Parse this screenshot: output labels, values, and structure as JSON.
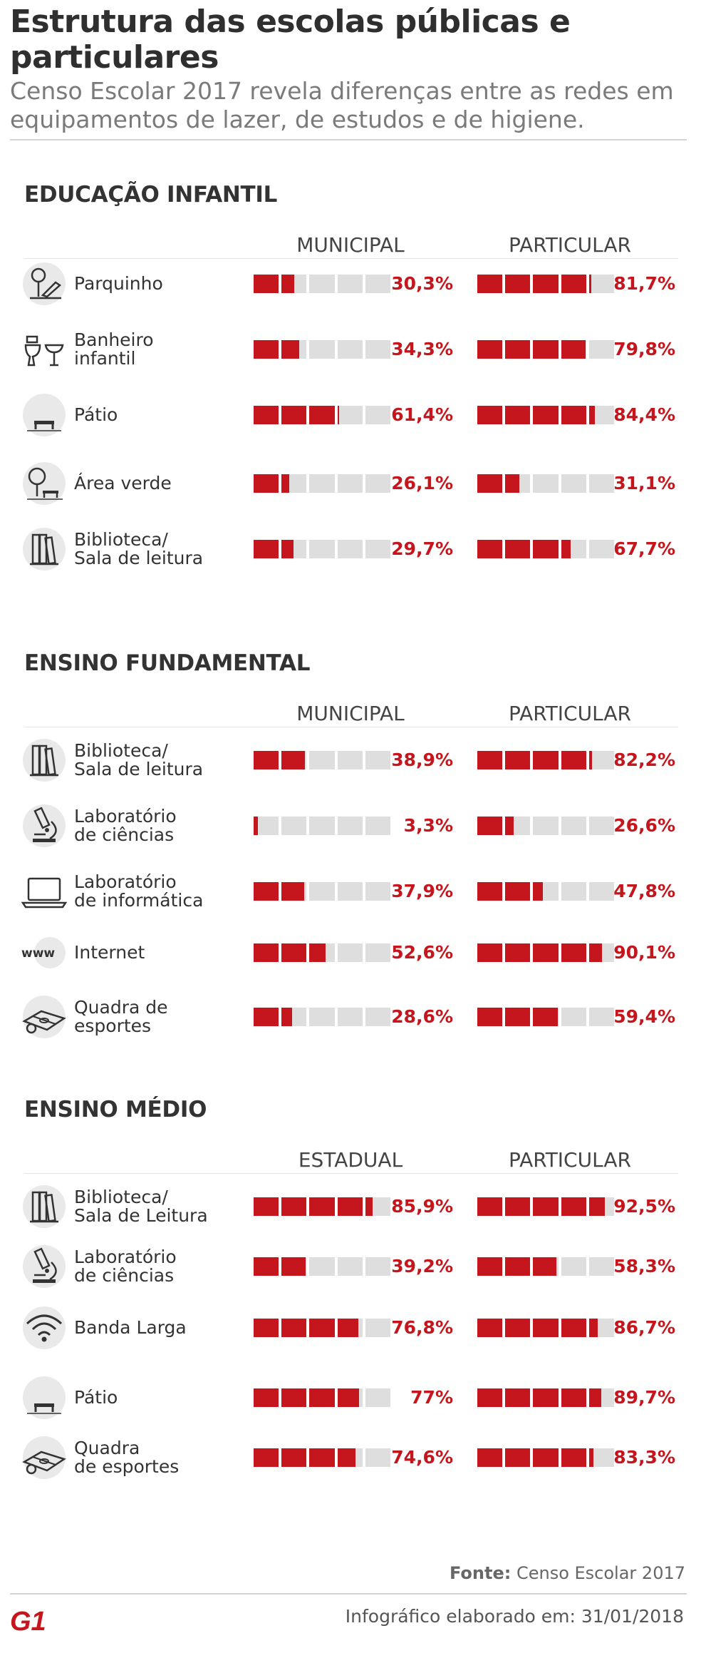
{
  "header": {
    "title": "Estrutura das escolas públicas e particulares",
    "subtitle": "Censo Escolar 2017 revela diferenças entre as redes em equipamentos de lazer, de estudos e de higiene."
  },
  "colors": {
    "accent": "#c4161c",
    "empty": "#dedede"
  },
  "chart_data": [
    {
      "type": "bar",
      "title": "EDUCAÇÃO INFANTIL",
      "columns": [
        "MUNICIPAL",
        "PARTICULAR"
      ],
      "categories": [
        "Parquinho",
        "Banheiro\ninfantil",
        "Pátio",
        "Área verde",
        "Biblioteca/\nSala de leitura"
      ],
      "icons": [
        "playground-icon",
        "toilet-icon",
        "bench-icon",
        "tree-icon",
        "books-icon"
      ],
      "series": [
        {
          "name": "MUNICIPAL",
          "values": [
            30.3,
            34.3,
            61.4,
            26.1,
            29.7
          ],
          "labels": [
            "30,3%",
            "34,3%",
            "61,4%",
            "26,1%",
            "29,7%"
          ]
        },
        {
          "name": "PARTICULAR",
          "values": [
            81.7,
            79.8,
            84.4,
            31.1,
            67.7
          ],
          "labels": [
            "81,7%",
            "79,8%",
            "84,4%",
            "31,1%",
            "67,7%"
          ]
        }
      ]
    },
    {
      "type": "bar",
      "title": "ENSINO FUNDAMENTAL",
      "columns": [
        "MUNICIPAL",
        "PARTICULAR"
      ],
      "categories": [
        "Biblioteca/\nSala de leitura",
        "Laboratório\nde ciências",
        "Laboratório\nde informática",
        "Internet",
        "Quadra de\nesportes"
      ],
      "icons": [
        "books-icon",
        "microscope-icon",
        "laptop-icon",
        "www-icon",
        "court-icon"
      ],
      "series": [
        {
          "name": "MUNICIPAL",
          "values": [
            38.9,
            3.3,
            37.9,
            52.6,
            28.6
          ],
          "labels": [
            "38,9%",
            "3,3%",
            "37,9%",
            "52,6%",
            "28,6%"
          ]
        },
        {
          "name": "PARTICULAR",
          "values": [
            82.2,
            26.6,
            47.8,
            90.1,
            59.4
          ],
          "labels": [
            "82,2%",
            "26,6%",
            "47,8%",
            "90,1%",
            "59,4%"
          ]
        }
      ]
    },
    {
      "type": "bar",
      "title": "ENSINO MÉDIO",
      "columns": [
        "ESTADUAL",
        "PARTICULAR"
      ],
      "categories": [
        "Biblioteca/\nSala de Leitura",
        "Laboratório\nde ciências",
        "Banda Larga",
        "Pátio",
        "Quadra\nde esportes"
      ],
      "icons": [
        "books-icon",
        "microscope-icon",
        "wifi-icon",
        "bench-icon",
        "court-icon"
      ],
      "series": [
        {
          "name": "ESTADUAL",
          "values": [
            85.9,
            39.2,
            76.8,
            77,
            74.6
          ],
          "labels": [
            "85,9%",
            "39,2%",
            "76,8%",
            "77%",
            "74,6%"
          ]
        },
        {
          "name": "PARTICULAR",
          "values": [
            92.5,
            58.3,
            86.7,
            89.7,
            83.3
          ],
          "labels": [
            "92,5%",
            "58,3%",
            "86,7%",
            "89,7%",
            "83,3%"
          ]
        }
      ]
    }
  ],
  "footer": {
    "source_label": "Fonte:",
    "source": "Censo Escolar 2017",
    "logo": "G1",
    "date": "Infográfico elaborado em: 31/01/2018"
  }
}
